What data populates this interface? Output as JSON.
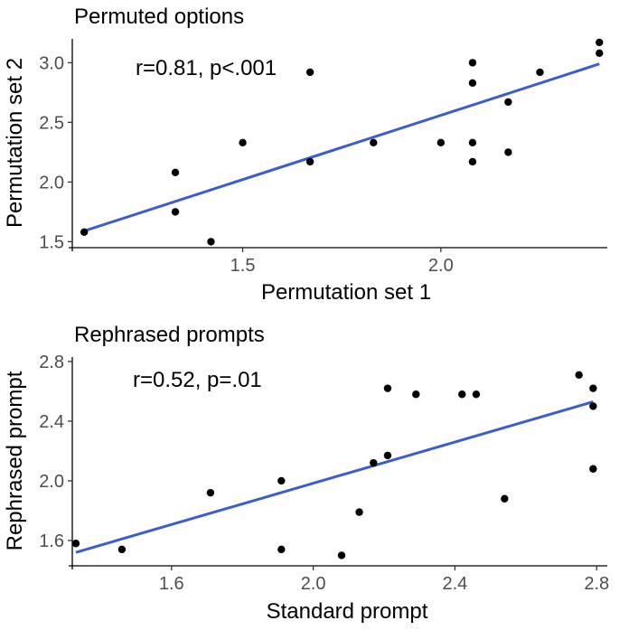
{
  "chart_data": [
    {
      "type": "scatter",
      "title": "Permuted options",
      "xlabel": "Permutation set 1",
      "ylabel": "Permutation set 2",
      "annotation": "r=0.81, p<.001",
      "xlim": [
        1.07,
        2.42
      ],
      "ylim": [
        1.45,
        3.2
      ],
      "xticks": [
        "1.5",
        "2.0"
      ],
      "xtick_values": [
        1.5,
        2.0
      ],
      "yticks": [
        "1.5",
        "2.0",
        "2.5",
        "3.0"
      ],
      "ytick_values": [
        1.5,
        2.0,
        2.5,
        3.0
      ],
      "grid": false,
      "fit_line": {
        "x": [
          1.1,
          2.4
        ],
        "y": [
          1.59,
          2.99
        ],
        "color": "#3a5fcd"
      },
      "points": [
        {
          "x": 1.1,
          "y": 1.58
        },
        {
          "x": 1.33,
          "y": 2.08
        },
        {
          "x": 1.33,
          "y": 1.75
        },
        {
          "x": 1.42,
          "y": 1.5
        },
        {
          "x": 1.5,
          "y": 2.33
        },
        {
          "x": 1.67,
          "y": 2.92
        },
        {
          "x": 1.67,
          "y": 2.17
        },
        {
          "x": 1.83,
          "y": 2.33
        },
        {
          "x": 2.0,
          "y": 2.33
        },
        {
          "x": 2.08,
          "y": 3.0
        },
        {
          "x": 2.08,
          "y": 2.83
        },
        {
          "x": 2.08,
          "y": 2.33
        },
        {
          "x": 2.08,
          "y": 2.17
        },
        {
          "x": 2.17,
          "y": 2.67
        },
        {
          "x": 2.17,
          "y": 2.25
        },
        {
          "x": 2.25,
          "y": 2.92
        },
        {
          "x": 2.4,
          "y": 3.17
        },
        {
          "x": 2.4,
          "y": 3.08
        }
      ]
    },
    {
      "type": "scatter",
      "title": "Rephrased prompts",
      "xlabel": "Standard prompt",
      "ylabel": "Rephrased prompt",
      "annotation": "r=0.52, p=.01",
      "xlim": [
        1.32,
        2.83
      ],
      "ylim": [
        1.43,
        2.83
      ],
      "xticks": [
        "1.6",
        "2.0",
        "2.4",
        "2.8"
      ],
      "xtick_values": [
        1.6,
        2.0,
        2.4,
        2.8
      ],
      "yticks": [
        "1.6",
        "2.0",
        "2.4",
        "2.8"
      ],
      "ytick_values": [
        1.6,
        2.0,
        2.4,
        2.8
      ],
      "grid": false,
      "fit_line": {
        "x": [
          1.33,
          2.79
        ],
        "y": [
          1.52,
          2.53
        ],
        "color": "#3a5fcd"
      },
      "points": [
        {
          "x": 1.33,
          "y": 1.58
        },
        {
          "x": 1.46,
          "y": 1.54
        },
        {
          "x": 1.71,
          "y": 1.92
        },
        {
          "x": 1.91,
          "y": 2.0
        },
        {
          "x": 1.91,
          "y": 1.54
        },
        {
          "x": 2.08,
          "y": 1.5
        },
        {
          "x": 2.13,
          "y": 1.79
        },
        {
          "x": 2.17,
          "y": 2.12
        },
        {
          "x": 2.21,
          "y": 2.17
        },
        {
          "x": 2.21,
          "y": 2.62
        },
        {
          "x": 2.29,
          "y": 2.58
        },
        {
          "x": 2.42,
          "y": 2.58
        },
        {
          "x": 2.46,
          "y": 2.58
        },
        {
          "x": 2.54,
          "y": 1.88
        },
        {
          "x": 2.75,
          "y": 2.71
        },
        {
          "x": 2.79,
          "y": 2.62
        },
        {
          "x": 2.79,
          "y": 2.5
        },
        {
          "x": 2.79,
          "y": 2.08
        }
      ]
    }
  ]
}
